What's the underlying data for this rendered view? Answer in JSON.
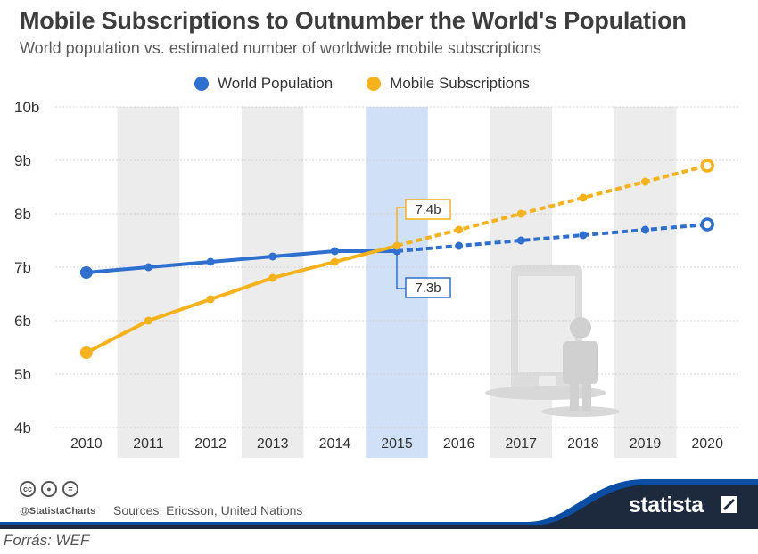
{
  "header": {
    "title": "Mobile Subscriptions to Outnumber the World's Population",
    "subtitle": "World population vs. estimated number of worldwide mobile subscriptions"
  },
  "colors": {
    "population": "#2f6fd0",
    "mobile": "#f5b21b",
    "band": "#ececec",
    "highlight": "#cfe0f7",
    "footer_blue": "#0a4fa5",
    "footer_dark": "#1d2a3d"
  },
  "chart_data": {
    "type": "line",
    "title": "Mobile Subscriptions to Outnumber the World's Population",
    "subtitle": "World population vs. estimated number of worldwide mobile subscriptions",
    "categories": [
      "2010",
      "2011",
      "2012",
      "2013",
      "2014",
      "2015",
      "2016",
      "2017",
      "2018",
      "2019",
      "2020"
    ],
    "y_ticks": [
      "4b",
      "5b",
      "6b",
      "7b",
      "8b",
      "9b",
      "10b"
    ],
    "ylim": [
      4,
      10
    ],
    "y_unit": "b",
    "legend_position": "top-center",
    "highlight_category": "2015",
    "actual_through": "2015",
    "series": [
      {
        "name": "World Population",
        "color": "#2f6fd0",
        "values": [
          6.9,
          7.0,
          7.1,
          7.2,
          7.3,
          7.3,
          7.4,
          7.5,
          7.6,
          7.7,
          7.8
        ]
      },
      {
        "name": "Mobile Subscriptions",
        "color": "#f5b21b",
        "values": [
          5.4,
          6.0,
          6.4,
          6.8,
          7.1,
          7.4,
          7.7,
          8.0,
          8.3,
          8.6,
          8.9
        ]
      }
    ],
    "annotations": [
      {
        "text": "7.4b",
        "series": "Mobile Subscriptions",
        "category": "2015"
      },
      {
        "text": "7.3b",
        "series": "World Population",
        "category": "2015"
      }
    ]
  },
  "footer": {
    "handle": "@StatistaCharts",
    "sources": "Sources: Ericsson, United Nations",
    "brand": "statista",
    "cc_icons": [
      "cc",
      "by",
      "nd"
    ]
  },
  "caption": "Forrás: WEF"
}
